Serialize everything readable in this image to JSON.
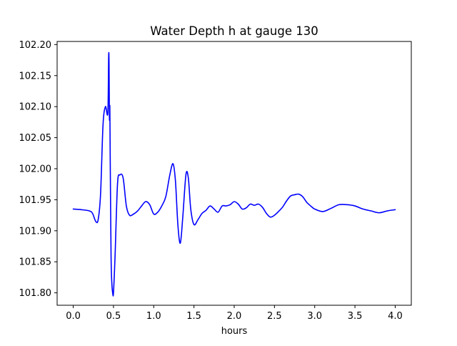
{
  "chart_data": {
    "type": "line",
    "title": "Water Depth h at gauge 130",
    "xlabel": "hours",
    "ylabel": "",
    "xlim": [
      -0.2,
      4.2
    ],
    "ylim": [
      101.78,
      102.205
    ],
    "xticks": [
      0.0,
      0.5,
      1.0,
      1.5,
      2.0,
      2.5,
      3.0,
      3.5,
      4.0
    ],
    "xtick_labels": [
      "0.0",
      "0.5",
      "1.0",
      "1.5",
      "2.0",
      "2.5",
      "3.0",
      "3.5",
      "4.0"
    ],
    "yticks": [
      101.8,
      101.85,
      101.9,
      101.95,
      102.0,
      102.05,
      102.1,
      102.15,
      102.2
    ],
    "ytick_labels": [
      "101.80",
      "101.85",
      "101.90",
      "101.95",
      "102.00",
      "102.05",
      "102.10",
      "102.15",
      "102.20"
    ],
    "grid": false,
    "series": [
      {
        "color": "#0000ff",
        "x": [
          0.0,
          0.1,
          0.2,
          0.24,
          0.28,
          0.31,
          0.34,
          0.37,
          0.4,
          0.43,
          0.44,
          0.445,
          0.45,
          0.455,
          0.46,
          0.47,
          0.48,
          0.49,
          0.5,
          0.52,
          0.55,
          0.58,
          0.62,
          0.66,
          0.7,
          0.75,
          0.8,
          0.85,
          0.9,
          0.95,
          1.0,
          1.05,
          1.1,
          1.15,
          1.2,
          1.24,
          1.27,
          1.3,
          1.33,
          1.36,
          1.4,
          1.43,
          1.46,
          1.5,
          1.55,
          1.6,
          1.65,
          1.7,
          1.75,
          1.8,
          1.85,
          1.9,
          1.95,
          2.0,
          2.05,
          2.1,
          2.15,
          2.2,
          2.25,
          2.3,
          2.35,
          2.4,
          2.45,
          2.5,
          2.55,
          2.6,
          2.65,
          2.7,
          2.75,
          2.8,
          2.85,
          2.9,
          2.95,
          3.0,
          3.1,
          3.2,
          3.3,
          3.4,
          3.5,
          3.6,
          3.7,
          3.8,
          3.9,
          4.0
        ],
        "y": [
          101.935,
          101.934,
          101.932,
          101.928,
          101.915,
          101.918,
          101.96,
          102.07,
          102.1,
          102.09,
          102.18,
          102.17,
          102.08,
          102.1,
          102.01,
          101.86,
          101.815,
          101.8,
          101.8,
          101.86,
          101.975,
          101.99,
          101.985,
          101.94,
          101.925,
          101.927,
          101.932,
          101.94,
          101.947,
          101.942,
          101.927,
          101.93,
          101.94,
          101.955,
          101.99,
          102.008,
          101.98,
          101.91,
          101.88,
          101.92,
          101.99,
          101.985,
          101.935,
          101.91,
          101.918,
          101.928,
          101.933,
          101.94,
          101.935,
          101.93,
          101.94,
          101.94,
          101.942,
          101.947,
          101.943,
          101.935,
          101.937,
          101.943,
          101.941,
          101.943,
          101.938,
          101.928,
          101.922,
          101.925,
          101.931,
          101.938,
          101.948,
          101.956,
          101.958,
          101.959,
          101.955,
          101.946,
          101.94,
          101.935,
          101.931,
          101.936,
          101.942,
          101.942,
          101.94,
          101.935,
          101.932,
          101.929,
          101.932,
          101.934
        ]
      }
    ]
  }
}
